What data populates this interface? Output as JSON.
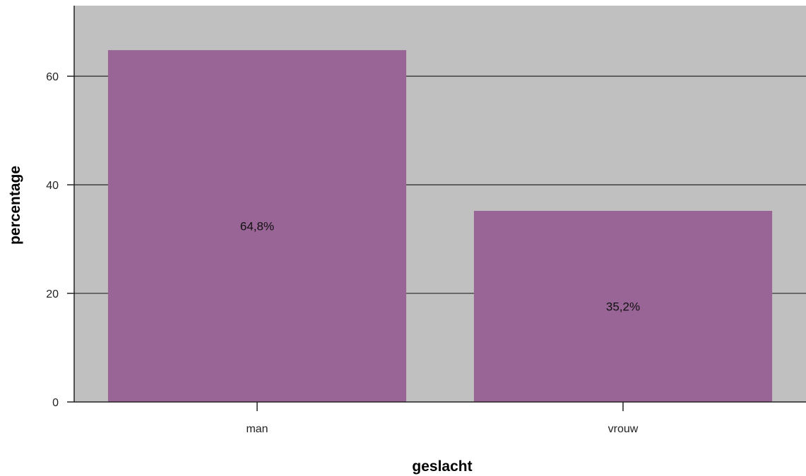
{
  "chart_data": {
    "type": "bar",
    "categories": [
      "man",
      "vrouw"
    ],
    "values": [
      64.8,
      35.2
    ],
    "data_labels": [
      "64,8%",
      "35,2%"
    ],
    "xlabel": "geslacht",
    "ylabel": "percentage",
    "ylim": [
      0,
      73
    ],
    "yticks": [
      0,
      20,
      40,
      60
    ],
    "ytick_labels": [
      "0",
      "20",
      "40",
      "60"
    ],
    "grid": true,
    "legend": "none"
  },
  "colors": {
    "plot_background": "#c0c0c0",
    "bar": "#986596",
    "gridline": "#333333",
    "axis": "#222222"
  }
}
